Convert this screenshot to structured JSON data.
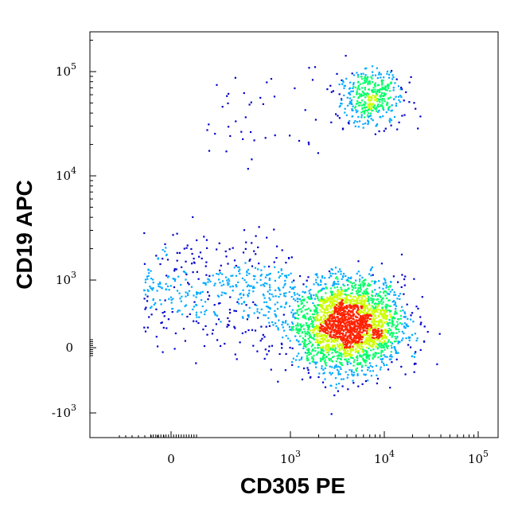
{
  "chart_data": {
    "type": "scatter",
    "title": "",
    "xlabel": "CD305 PE",
    "ylabel": "CD19 APC",
    "x_scale": "biexponential",
    "y_scale": "biexponential",
    "x_ticks": [
      {
        "value": 0,
        "base": "0",
        "exp": ""
      },
      {
        "value": 1000,
        "base": "10",
        "exp": "3"
      },
      {
        "value": 10000,
        "base": "10",
        "exp": "4"
      },
      {
        "value": 100000,
        "base": "10",
        "exp": "5"
      }
    ],
    "y_ticks": [
      {
        "value": -1000,
        "base": "-10",
        "exp": "3"
      },
      {
        "value": 0,
        "base": "0",
        "exp": ""
      },
      {
        "value": 1000,
        "base": "10",
        "exp": "3"
      },
      {
        "value": 10000,
        "base": "10",
        "exp": "4"
      },
      {
        "value": 100000,
        "base": "10",
        "exp": "5"
      }
    ],
    "colormap": [
      "#0000cc",
      "#00aaff",
      "#00ff66",
      "#ccff00",
      "#ff2200"
    ],
    "populations": [
      {
        "name": "",
        "x_center": 4000,
        "y_center": 350,
        "x_spread_decades": 0.6,
        "y_spread": 1.3,
        "count": 2600
      },
      {
        "name": "",
        "x_center": 7000,
        "y_center": 58000,
        "x_spread_decades": 0.35,
        "y_spread_decades": 0.28,
        "count": 420
      },
      {
        "name": "",
        "x_center": 150,
        "y_center": 300,
        "x_spread_decades": 0.8,
        "y_spread": 1.0,
        "count": 450
      },
      {
        "name": "",
        "x_center": 400,
        "y_center": 40000,
        "x_spread_decades": 0.9,
        "y_spread_decades": 0.5,
        "count": 40
      }
    ],
    "grid": false,
    "legend": "none"
  }
}
